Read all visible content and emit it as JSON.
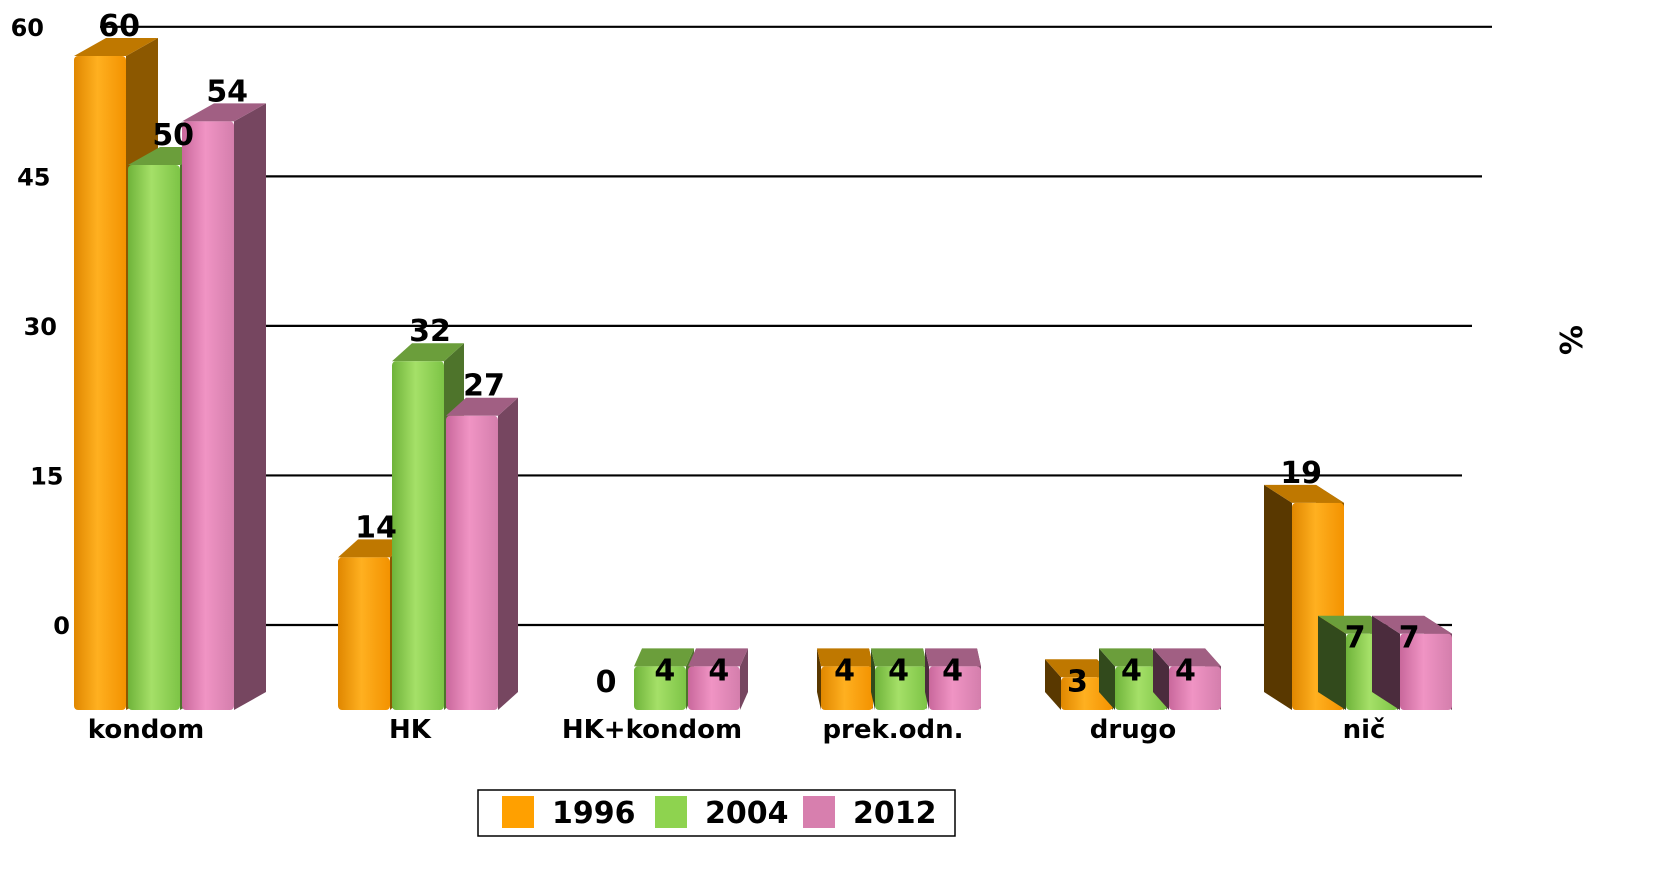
{
  "chart_data": {
    "type": "bar",
    "categories": [
      "kondom",
      "HK",
      "HK+kondom",
      "prek.odn.",
      "drugo",
      "nič"
    ],
    "series": [
      {
        "name": "1996",
        "values": [
          60,
          14,
          0,
          4,
          3,
          19
        ],
        "color": "#FFA000"
      },
      {
        "name": "2004",
        "values": [
          50,
          32,
          4,
          4,
          4,
          7
        ],
        "color": "#8ED34F"
      },
      {
        "name": "2012",
        "values": [
          54,
          27,
          4,
          4,
          4,
          7
        ],
        "color": "#D77FAE"
      }
    ],
    "y_ticks": [
      "0",
      "15",
      "30",
      "45",
      "60"
    ],
    "ylabel": "%",
    "ylim": [
      0,
      60
    ],
    "grid": true,
    "legend_position": "bottom",
    "style": "3d-bar"
  }
}
